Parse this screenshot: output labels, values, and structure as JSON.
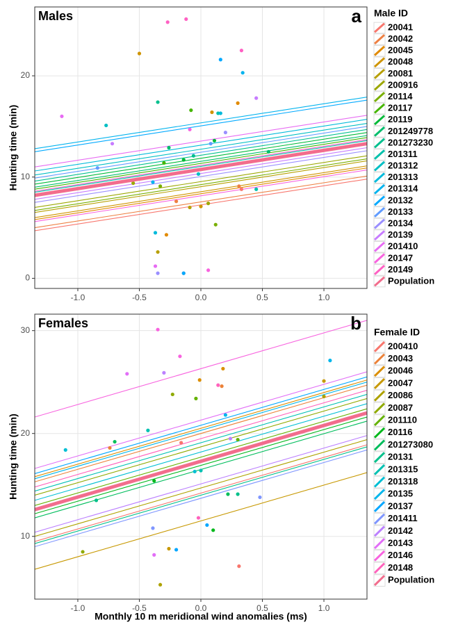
{
  "chart_data": [
    {
      "type": "scatter",
      "title": "Males",
      "panel_label": "a",
      "ylabel": "Hunting time (min)",
      "legend_title": "Male ID",
      "xlim": [
        -1.35,
        1.35
      ],
      "ylim": [
        -1,
        26.8
      ],
      "grid": true,
      "xticks": [
        {
          "value": -1,
          "label": "-1.0"
        },
        -0.5,
        {
          "value": 0,
          "label": "0.0"
        },
        0.5,
        {
          "value": 1,
          "label": "1.0"
        }
      ],
      "yticks": [
        0,
        10,
        20
      ],
      "series": [
        {
          "name": "20041",
          "color": "#F8766D",
          "x": [
            -0.14,
            0.33
          ],
          "values": [
            0.5,
            8.8
          ],
          "line": [
            4.7,
            9.8
          ]
        },
        {
          "name": "20042",
          "color": "#EE8043",
          "x": [
            0.31,
            -0.2
          ],
          "values": [
            9.1,
            7.6
          ],
          "line": [
            5.0,
            10.1
          ]
        },
        {
          "name": "20045",
          "color": "#E18A00",
          "x": [
            -0.28,
            0.3
          ],
          "values": [
            4.3,
            17.3
          ],
          "line": [
            5.8,
            10.9
          ]
        },
        {
          "name": "20048",
          "color": "#CF9400",
          "x": [
            -0.5,
            0.0,
            0.09
          ],
          "values": [
            22.2,
            7.1,
            16.4
          ],
          "line": [
            6.0,
            11.1
          ]
        },
        {
          "name": "20081",
          "color": "#B79F00",
          "x": [
            -0.09,
            -0.35
          ],
          "values": [
            7,
            2.6
          ],
          "line": [
            6.5,
            11.6
          ]
        },
        {
          "name": "200916",
          "color": "#9CA700",
          "x": [
            0.06,
            -0.55
          ],
          "values": [
            7.4,
            9.4
          ],
          "line": [
            7.0,
            12.1
          ]
        },
        {
          "name": "20114",
          "color": "#79AF00",
          "x": [
            -0.33,
            0.12
          ],
          "values": [
            9.1,
            5.3
          ],
          "line": [
            6.7,
            11.8
          ]
        },
        {
          "name": "20117",
          "color": "#45B500",
          "x": [
            -0.08,
            -0.3
          ],
          "values": [
            16.6,
            11.4
          ],
          "line": [
            8.8,
            13.9
          ]
        },
        {
          "name": "20119",
          "color": "#00BA38",
          "x": [
            0.11,
            -0.14
          ],
          "values": [
            13.6,
            11.7
          ],
          "line": [
            9.3,
            14.4
          ]
        },
        {
          "name": "201249778",
          "color": "#00BE6C",
          "x": [
            0.55,
            -0.26
          ],
          "values": [
            12.5,
            12.9
          ],
          "line": [
            9.0,
            14.1
          ]
        },
        {
          "name": "201273230",
          "color": "#00C08E",
          "x": [
            -0.35,
            -0.06
          ],
          "values": [
            17.4,
            12.1
          ],
          "line": [
            9.6,
            14.7
          ]
        },
        {
          "name": "201311",
          "color": "#00C1AB",
          "x": [
            0.45,
            0.14
          ],
          "values": [
            8.8,
            16.3
          ],
          "line": [
            8.5,
            13.6
          ]
        },
        {
          "name": "201312",
          "color": "#00BFC4",
          "x": [
            -0.77,
            -0.02
          ],
          "values": [
            15.1,
            10.3
          ],
          "line": [
            10.2,
            15.3
          ]
        },
        {
          "name": "201313",
          "color": "#00BADB",
          "x": [
            -0.37,
            0.16
          ],
          "values": [
            4.5,
            16.3
          ],
          "line": [
            10.6,
            15.7
          ]
        },
        {
          "name": "201314",
          "color": "#00B3EE",
          "x": [
            -0.39,
            0.34
          ],
          "values": [
            9.5,
            20.3
          ],
          "line": [
            12.8,
            17.9
          ]
        },
        {
          "name": "20132",
          "color": "#00A9FF",
          "x": [
            0.16,
            -0.14
          ],
          "values": [
            21.6,
            0.5
          ],
          "line": [
            12.5,
            17.6
          ]
        },
        {
          "name": "20133",
          "color": "#619CFF",
          "x": [
            -0.84,
            0.08
          ],
          "values": [
            10.9,
            13.3
          ],
          "line": [
            9.9,
            15.0
          ]
        },
        {
          "name": "20134",
          "color": "#9A8FFF",
          "x": [
            -0.35,
            0.2
          ],
          "values": [
            0.5,
            14.4
          ],
          "line": [
            7.5,
            12.6
          ]
        },
        {
          "name": "20139",
          "color": "#C77CFF",
          "x": [
            -0.72,
            0.45
          ],
          "values": [
            13.3,
            17.8
          ],
          "line": [
            7.8,
            12.9
          ]
        },
        {
          "name": "201410",
          "color": "#E76BF3",
          "x": [
            -1.13,
            -0.37
          ],
          "values": [
            16.0,
            1.2
          ],
          "line": [
            11.0,
            16.1
          ]
        },
        {
          "name": "20147",
          "color": "#F863DF",
          "x": [
            0.06,
            -0.09
          ],
          "values": [
            0.8,
            14.7
          ],
          "line": [
            5.6,
            10.7
          ]
        },
        {
          "name": "20149",
          "color": "#FF61C3",
          "x": [
            -0.27,
            0.33,
            -0.12
          ],
          "values": [
            25.3,
            22.5,
            25.6
          ],
          "line": [
            8.6,
            13.7
          ]
        },
        {
          "name": "Population",
          "color": "#F26D8D",
          "line": [
            8.2,
            13.3
          ],
          "population": true
        }
      ]
    },
    {
      "type": "scatter",
      "title": "Females",
      "panel_label": "b",
      "ylabel": "Hunting time (min)",
      "legend_title": "Female ID",
      "xlabel": "Monthly 10 m meridional wind anomalies (ms)",
      "xlim": [
        -1.35,
        1.35
      ],
      "ylim": [
        3.9,
        31.6
      ],
      "grid": true,
      "xticks": [
        {
          "value": -1,
          "label": "-1.0"
        },
        -0.5,
        {
          "value": 0,
          "label": "0.0"
        },
        0.5,
        {
          "value": 1,
          "label": "1.0"
        }
      ],
      "yticks": [
        10,
        20,
        30
      ],
      "series": [
        {
          "name": "200410",
          "color": "#F8766D",
          "x": [
            0.31,
            -0.16
          ],
          "values": [
            7.1,
            19.1
          ],
          "line": [
            9.5,
            18.9
          ]
        },
        {
          "name": "20043",
          "color": "#EC8239",
          "x": [
            -0.74,
            0.17
          ],
          "values": [
            18.6,
            24.6
          ],
          "line": [
            15.3,
            24.7
          ]
        },
        {
          "name": "20046",
          "color": "#DB8E00",
          "x": [
            -0.01,
            0.18
          ],
          "values": [
            25.2,
            26.3
          ],
          "line": [
            15.8,
            25.2
          ]
        },
        {
          "name": "20047",
          "color": "#C79800",
          "x": [
            1.0,
            -0.26
          ],
          "values": [
            25.1,
            8.8
          ],
          "line": [
            6.8,
            16.2
          ]
        },
        {
          "name": "20086",
          "color": "#AEA200",
          "x": [
            -0.33,
            1.0
          ],
          "values": [
            5.3,
            23.6
          ],
          "line": [
            10.0,
            19.4
          ]
        },
        {
          "name": "20087",
          "color": "#8FAA00",
          "x": [
            -0.96,
            -0.23
          ],
          "values": [
            8.5,
            23.8
          ],
          "line": [
            14.0,
            23.4
          ]
        },
        {
          "name": "201110",
          "color": "#64B200",
          "x": [
            -0.04,
            0.3
          ],
          "values": [
            23.4,
            19.4
          ],
          "line": [
            13.0,
            22.4
          ]
        },
        {
          "name": "20116",
          "color": "#00B81B",
          "x": [
            0.1,
            -0.38
          ],
          "values": [
            10.6,
            15.4
          ],
          "line": [
            12.2,
            21.6
          ]
        },
        {
          "name": "201273080",
          "color": "#00BD5C",
          "x": [
            -0.7,
            0.22
          ],
          "values": [
            19.2,
            14.1
          ],
          "line": [
            11.8,
            21.2
          ]
        },
        {
          "name": "20131",
          "color": "#00C08B",
          "x": [
            -0.85,
            0.3
          ],
          "values": [
            13.5,
            14.1
          ],
          "line": [
            9.3,
            18.7
          ]
        },
        {
          "name": "201315",
          "color": "#00C1B2",
          "x": [
            -0.43,
            0.0
          ],
          "values": [
            20.3,
            16.4
          ],
          "line": [
            14.4,
            23.8
          ]
        },
        {
          "name": "201318",
          "color": "#00BFD4",
          "x": [
            -1.1,
            -0.05
          ],
          "values": [
            18.4,
            16.3
          ],
          "line": [
            13.5,
            22.9
          ]
        },
        {
          "name": "20135",
          "color": "#00B6EB",
          "x": [
            1.05,
            0.2
          ],
          "values": [
            27.1,
            21.8
          ],
          "line": [
            15.6,
            25.0
          ]
        },
        {
          "name": "20137",
          "color": "#00A6FF",
          "x": [
            0.05,
            -0.2
          ],
          "values": [
            11.1,
            8.7
          ],
          "line": [
            16.1,
            25.5
          ]
        },
        {
          "name": "201411",
          "color": "#7F96FF",
          "x": [
            0.48,
            -0.39
          ],
          "values": [
            13.8,
            10.8
          ],
          "line": [
            9.0,
            18.4
          ]
        },
        {
          "name": "20142",
          "color": "#BC81FF",
          "x": [
            0.24,
            -0.3
          ],
          "values": [
            19.5,
            25.9
          ],
          "line": [
            10.4,
            19.8
          ]
        },
        {
          "name": "20143",
          "color": "#E26EF7",
          "x": [
            -0.38,
            -0.6
          ],
          "values": [
            8.2,
            25.8
          ],
          "line": [
            16.6,
            26.0
          ]
        },
        {
          "name": "20146",
          "color": "#F863DF",
          "x": [
            -0.35,
            -0.17
          ],
          "values": [
            30.1,
            27.5
          ],
          "line": [
            21.6,
            31.0
          ]
        },
        {
          "name": "20148",
          "color": "#FF62BC",
          "x": [
            0.14,
            -0.02
          ],
          "values": [
            24.7,
            11.8
          ],
          "line": [
            14.8,
            24.2
          ]
        },
        {
          "name": "Population",
          "color": "#F26D8D",
          "line": [
            12.6,
            22.0
          ],
          "population": true
        }
      ]
    }
  ]
}
